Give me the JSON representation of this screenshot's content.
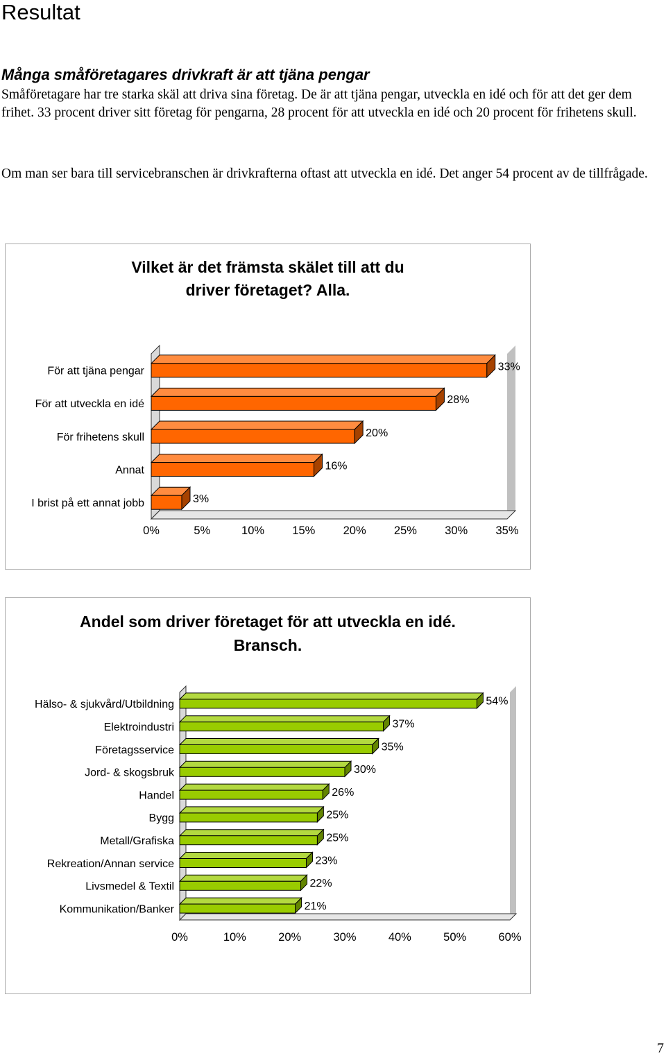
{
  "page": {
    "title": "Resultat",
    "heading": "Många småföretagares drivkraft är att tjäna pengar",
    "paragraphs": [
      "Småföretagare har tre starka skäl att driva sina företag. De är att tjäna pengar, utveckla en idé och för att det ger dem frihet. 33 procent driver sitt företag för pengarna, 28 procent för att utveckla en idé och 20 procent för frihetens skull.",
      "Om man ser bara till servicebranschen är drivkrafterna oftast att utveckla en idé. Det anger 54 procent av de tillfrågade."
    ],
    "page_number": "7"
  },
  "chart_data": [
    {
      "type": "bar",
      "orientation": "horizontal",
      "title_lines": [
        "Vilket är det främsta skälet till att du",
        "driver företaget? Alla."
      ],
      "categories": [
        "För att tjäna pengar",
        "För att utveckla en idé",
        "För frihetens skull",
        "Annat",
        "I brist på ett annat jobb"
      ],
      "values": [
        33,
        28,
        20,
        16,
        3
      ],
      "value_labels": [
        "33%",
        "28%",
        "20%",
        "16%",
        "3%"
      ],
      "xlim": [
        0,
        35
      ],
      "xticks": [
        0,
        5,
        10,
        15,
        20,
        25,
        30,
        35
      ],
      "xtick_labels": [
        "0%",
        "5%",
        "10%",
        "15%",
        "20%",
        "25%",
        "30%",
        "35%"
      ],
      "bar_color": "#ff6600",
      "grid": false,
      "style": "3d"
    },
    {
      "type": "bar",
      "orientation": "horizontal",
      "title_lines": [
        "Andel som driver företaget för att utveckla en idé.",
        "Bransch."
      ],
      "categories": [
        "Hälso- & sjukvård/Utbildning",
        "Elektroindustri",
        "Företagsservice",
        "Jord- & skogsbruk",
        "Handel",
        "Bygg",
        "Metall/Grafiska",
        "Rekreation/Annan service",
        "Livsmedel & Textil",
        "Kommunikation/Banker"
      ],
      "values": [
        54,
        37,
        35,
        30,
        26,
        25,
        25,
        23,
        22,
        21
      ],
      "value_labels": [
        "54%",
        "37%",
        "35%",
        "30%",
        "26%",
        "25%",
        "25%",
        "23%",
        "22%",
        "21%"
      ],
      "xlim": [
        0,
        60
      ],
      "xticks": [
        0,
        10,
        20,
        30,
        40,
        50,
        60
      ],
      "xtick_labels": [
        "0%",
        "10%",
        "20%",
        "30%",
        "40%",
        "50%",
        "60%"
      ],
      "bar_color": "#99cc00",
      "grid": false,
      "style": "3d"
    }
  ]
}
